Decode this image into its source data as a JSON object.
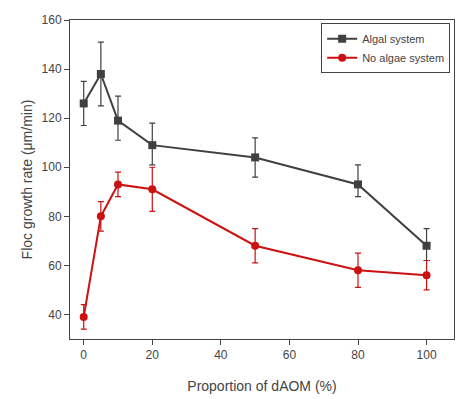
{
  "chart_data": {
    "type": "line",
    "xlabel": "Proportion of dAOM (%)",
    "ylabel": "Floc growth rate (μm/min)",
    "x": [
      0,
      5,
      10,
      20,
      50,
      80,
      100
    ],
    "series": [
      {
        "name": "Algal system",
        "color": "#404040",
        "marker": "square",
        "line_style": "solid",
        "values": [
          126,
          138,
          119,
          109,
          104,
          93,
          68
        ],
        "yerr_lo": [
          9,
          13,
          8,
          8,
          8,
          5,
          6
        ],
        "yerr_hi": [
          9,
          13,
          10,
          9,
          8,
          8,
          7
        ]
      },
      {
        "name": "No algae system",
        "color": "#cc1111",
        "marker": "circle",
        "line_style": "solid",
        "values": [
          39,
          80,
          93,
          91,
          68,
          58,
          56
        ],
        "yerr_lo": [
          5,
          6,
          5,
          9,
          7,
          7,
          6
        ],
        "yerr_hi": [
          5,
          6,
          5,
          9,
          7,
          7,
          6
        ]
      }
    ],
    "xlim": [
      -4,
      108
    ],
    "ylim": [
      30,
      160
    ],
    "xticks": [
      0,
      20,
      40,
      60,
      80,
      100
    ],
    "yticks": [
      40,
      60,
      80,
      100,
      120,
      140,
      160
    ],
    "legend": "upper right",
    "grid": false
  }
}
